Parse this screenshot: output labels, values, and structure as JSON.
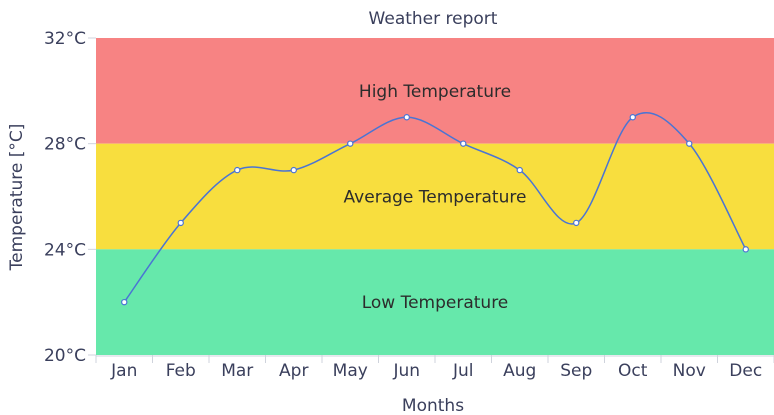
{
  "chart_data": {
    "type": "line",
    "title": "Weather report",
    "xlabel": "Months",
    "ylabel": "Temperature [°C]",
    "categories": [
      "Jan",
      "Feb",
      "Mar",
      "Apr",
      "May",
      "Jun",
      "Jul",
      "Aug",
      "Sep",
      "Oct",
      "Nov",
      "Dec"
    ],
    "series": [
      {
        "name": "",
        "values": [
          22,
          25,
          27,
          27,
          28,
          29,
          28,
          27,
          25,
          29,
          28,
          24
        ],
        "color": "#4a74d4"
      }
    ],
    "ylim": [
      20,
      32
    ],
    "yticks": [
      20,
      24,
      28,
      32
    ],
    "ytick_labels": [
      "20°C",
      "24°C",
      "28°C",
      "32°C"
    ],
    "bands": [
      {
        "label": "High Temperature",
        "from": 28,
        "to": 32,
        "color": "#f78383"
      },
      {
        "label": "Average Temperature",
        "from": 24,
        "to": 28,
        "color": "#f8de3e"
      },
      {
        "label": "Low Temperature",
        "from": 20,
        "to": 24,
        "color": "#66e8ab"
      }
    ],
    "grid": false
  }
}
